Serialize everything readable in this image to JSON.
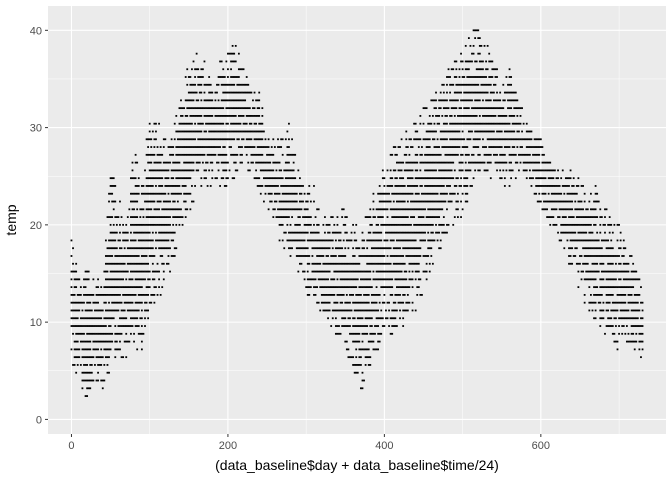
{
  "chart_data": {
    "type": "scatter",
    "xlabel": "(data_baseline$day + data_baseline$time/24)",
    "ylabel": "temp",
    "xlim": [
      -30,
      760
    ],
    "ylim": [
      -1.5,
      42.5
    ],
    "x_ticks": [
      0,
      200,
      400,
      600
    ],
    "x_minor_ticks": [
      100,
      300,
      500,
      700
    ],
    "y_ticks": [
      0,
      10,
      20,
      30,
      40
    ],
    "y_minor_ticks": [
      5,
      15,
      25,
      35
    ],
    "grid": true,
    "legend": "none",
    "colors": {
      "panel": "#ebebeb",
      "grid": "#ffffff",
      "points": "#000000"
    },
    "y_step": 0.8,
    "envelope": {
      "x": [
        0,
        10,
        20,
        30,
        40,
        50,
        60,
        70,
        80,
        90,
        100,
        110,
        120,
        130,
        140,
        150,
        160,
        170,
        180,
        190,
        200,
        210,
        220,
        230,
        240,
        250,
        260,
        270,
        280,
        290,
        300,
        310,
        320,
        330,
        340,
        350,
        360,
        370,
        380,
        390,
        400,
        410,
        420,
        430,
        440,
        450,
        460,
        470,
        480,
        490,
        500,
        510,
        520,
        530,
        540,
        550,
        560,
        570,
        580,
        590,
        600,
        610,
        620,
        630,
        640,
        650,
        660,
        670,
        680,
        690,
        700,
        710,
        720,
        730
      ],
      "low": [
        6,
        4,
        1,
        3,
        3,
        5,
        6,
        6,
        7,
        7,
        11,
        12,
        14,
        16,
        19,
        21,
        23,
        24,
        24,
        24,
        24,
        25,
        26,
        25,
        23,
        21,
        20,
        17,
        16,
        15,
        13,
        11,
        10,
        10,
        8,
        7,
        5,
        2,
        5,
        7,
        8,
        8,
        9,
        10,
        11,
        13,
        15,
        17,
        19,
        20,
        21,
        23,
        25,
        25,
        24,
        24,
        24,
        25,
        25,
        23,
        21,
        20,
        19,
        17,
        15,
        13,
        11,
        10,
        9,
        8,
        7,
        8,
        7,
        6
      ],
      "high": [
        19,
        15,
        16,
        15,
        14,
        27,
        23,
        21,
        28,
        26,
        31,
        31,
        29,
        30,
        34,
        37,
        38,
        37,
        34,
        37,
        39,
        39,
        36,
        34,
        34,
        30,
        29,
        29,
        31,
        26,
        24,
        24,
        20,
        22,
        22,
        22,
        20,
        20,
        22,
        25,
        26,
        28,
        29,
        30,
        31,
        32,
        33,
        34,
        36,
        37,
        38,
        40,
        41,
        39,
        37,
        35,
        36,
        34,
        31,
        30,
        29,
        27,
        26,
        26,
        26,
        25,
        23,
        24,
        22,
        21,
        20,
        18,
        16,
        14
      ]
    }
  }
}
